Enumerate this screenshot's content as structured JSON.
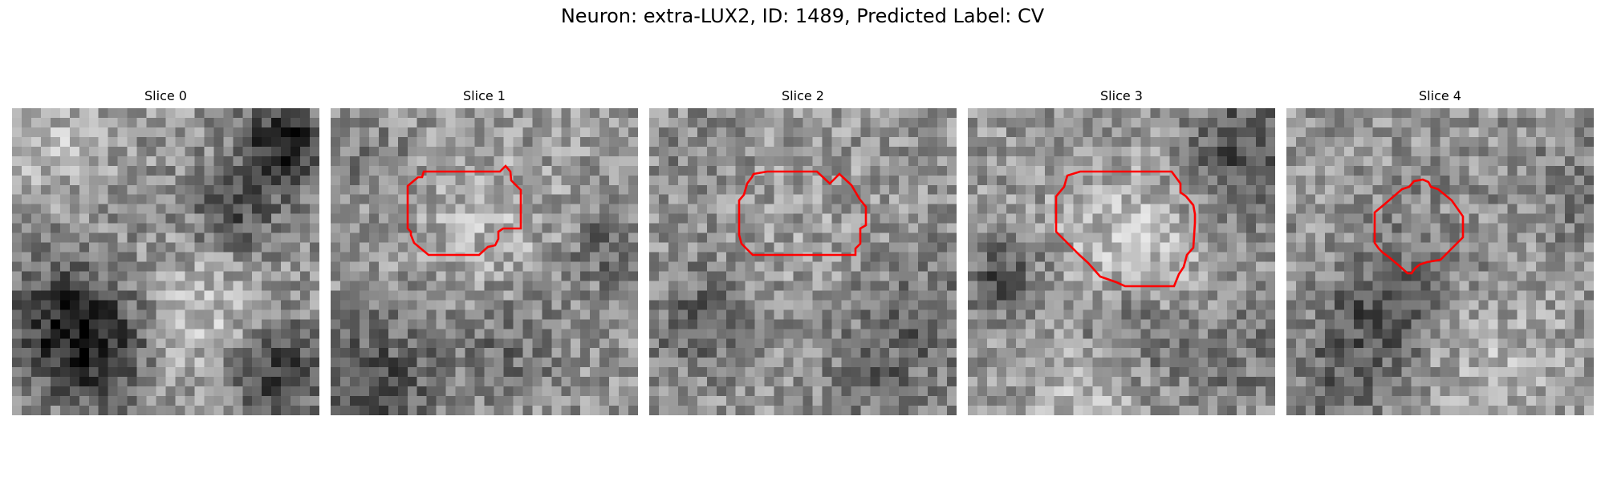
{
  "figure": {
    "title": "Neuron: extra-LUX2, ID: 1489, Predicted Label: CV"
  },
  "contour_color": "#ff0000",
  "panels": [
    {
      "title": "Slice 0",
      "has_contour": false
    },
    {
      "title": "Slice 1",
      "has_contour": true
    },
    {
      "title": "Slice 2",
      "has_contour": true
    },
    {
      "title": "Slice 3",
      "has_contour": true
    },
    {
      "title": "Slice 4",
      "has_contour": true
    }
  ]
}
